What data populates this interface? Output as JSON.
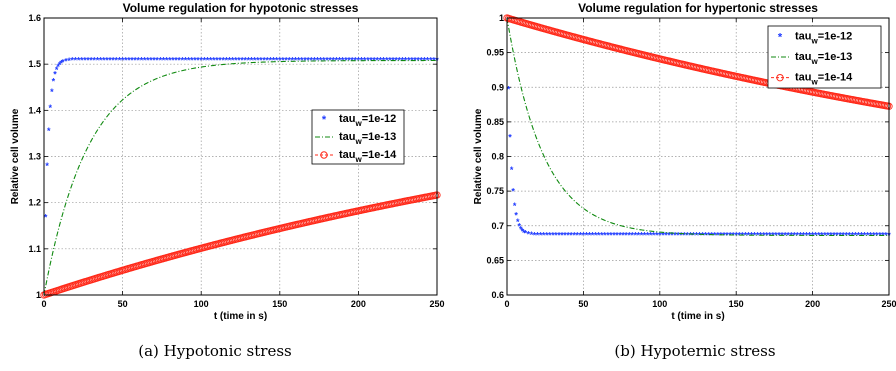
{
  "colors": {
    "blue": "#1f3bff",
    "green": "#118a11",
    "red": "#ff2a1a",
    "grid": "#999999"
  },
  "captions": [
    "(a) Hypotonic stress",
    "(b) Hypoternic stress"
  ],
  "chart_data": [
    {
      "type": "line",
      "title": "Volume regulation for hypotonic stresses",
      "xlabel": "t (time in s)",
      "ylabel": "Relative cell volume",
      "xlim": [
        0,
        250
      ],
      "ylim": [
        1,
        1.6
      ],
      "xticks": [
        0,
        50,
        100,
        150,
        200,
        250
      ],
      "yticks": [
        1,
        1.1,
        1.2,
        1.3,
        1.4,
        1.5,
        1.6
      ],
      "grid": true,
      "legend_position": "right",
      "series": [
        {
          "name": "tau_w=1e-12",
          "legend_main": "tau",
          "legend_sub": "w",
          "legend_rest": "=1e-12",
          "style": "stars",
          "color": "blue",
          "start": 1.0,
          "final": 1.508,
          "tau": 2.5
        },
        {
          "name": "tau_w=1e-13",
          "legend_main": "tau",
          "legend_sub": "w",
          "legend_rest": "=1e-13",
          "style": "dashdot",
          "color": "green",
          "start": 1.0,
          "final": 1.508,
          "tau": 28
        },
        {
          "name": "tau_w=1e-14",
          "legend_main": "tau",
          "legend_sub": "w",
          "legend_rest": "=1e-14",
          "style": "circles",
          "color": "red",
          "start": 1.0,
          "final": 1.508,
          "tau": 450
        }
      ]
    },
    {
      "type": "line",
      "title": "Volume regulation for hypertonic stresses",
      "xlabel": "t (time in s)",
      "ylabel": "Relative cell volume",
      "xlim": [
        0,
        250
      ],
      "ylim": [
        0.6,
        1
      ],
      "xticks": [
        0,
        50,
        100,
        150,
        200,
        250
      ],
      "yticks": [
        0.6,
        0.65,
        0.7,
        0.75,
        0.8,
        0.85,
        0.9,
        0.95,
        1
      ],
      "grid": true,
      "legend_position": "top-right",
      "series": [
        {
          "name": "tau_w=1e-12",
          "legend_main": "tau",
          "legend_sub": "w",
          "legend_rest": "=1e-12",
          "style": "stars",
          "color": "blue",
          "start": 1.0,
          "final": 0.686,
          "tau": 2.5
        },
        {
          "name": "tau_w=1e-13",
          "legend_main": "tau",
          "legend_sub": "w",
          "legend_rest": "=1e-13",
          "style": "dashdot",
          "color": "green",
          "start": 1.0,
          "final": 0.686,
          "tau": 24
        },
        {
          "name": "tau_w=1e-14",
          "legend_main": "tau",
          "legend_sub": "w",
          "legend_rest": "=1e-14",
          "style": "circles",
          "color": "red",
          "start": 1.0,
          "final": 0.686,
          "tau": 480
        }
      ]
    }
  ]
}
